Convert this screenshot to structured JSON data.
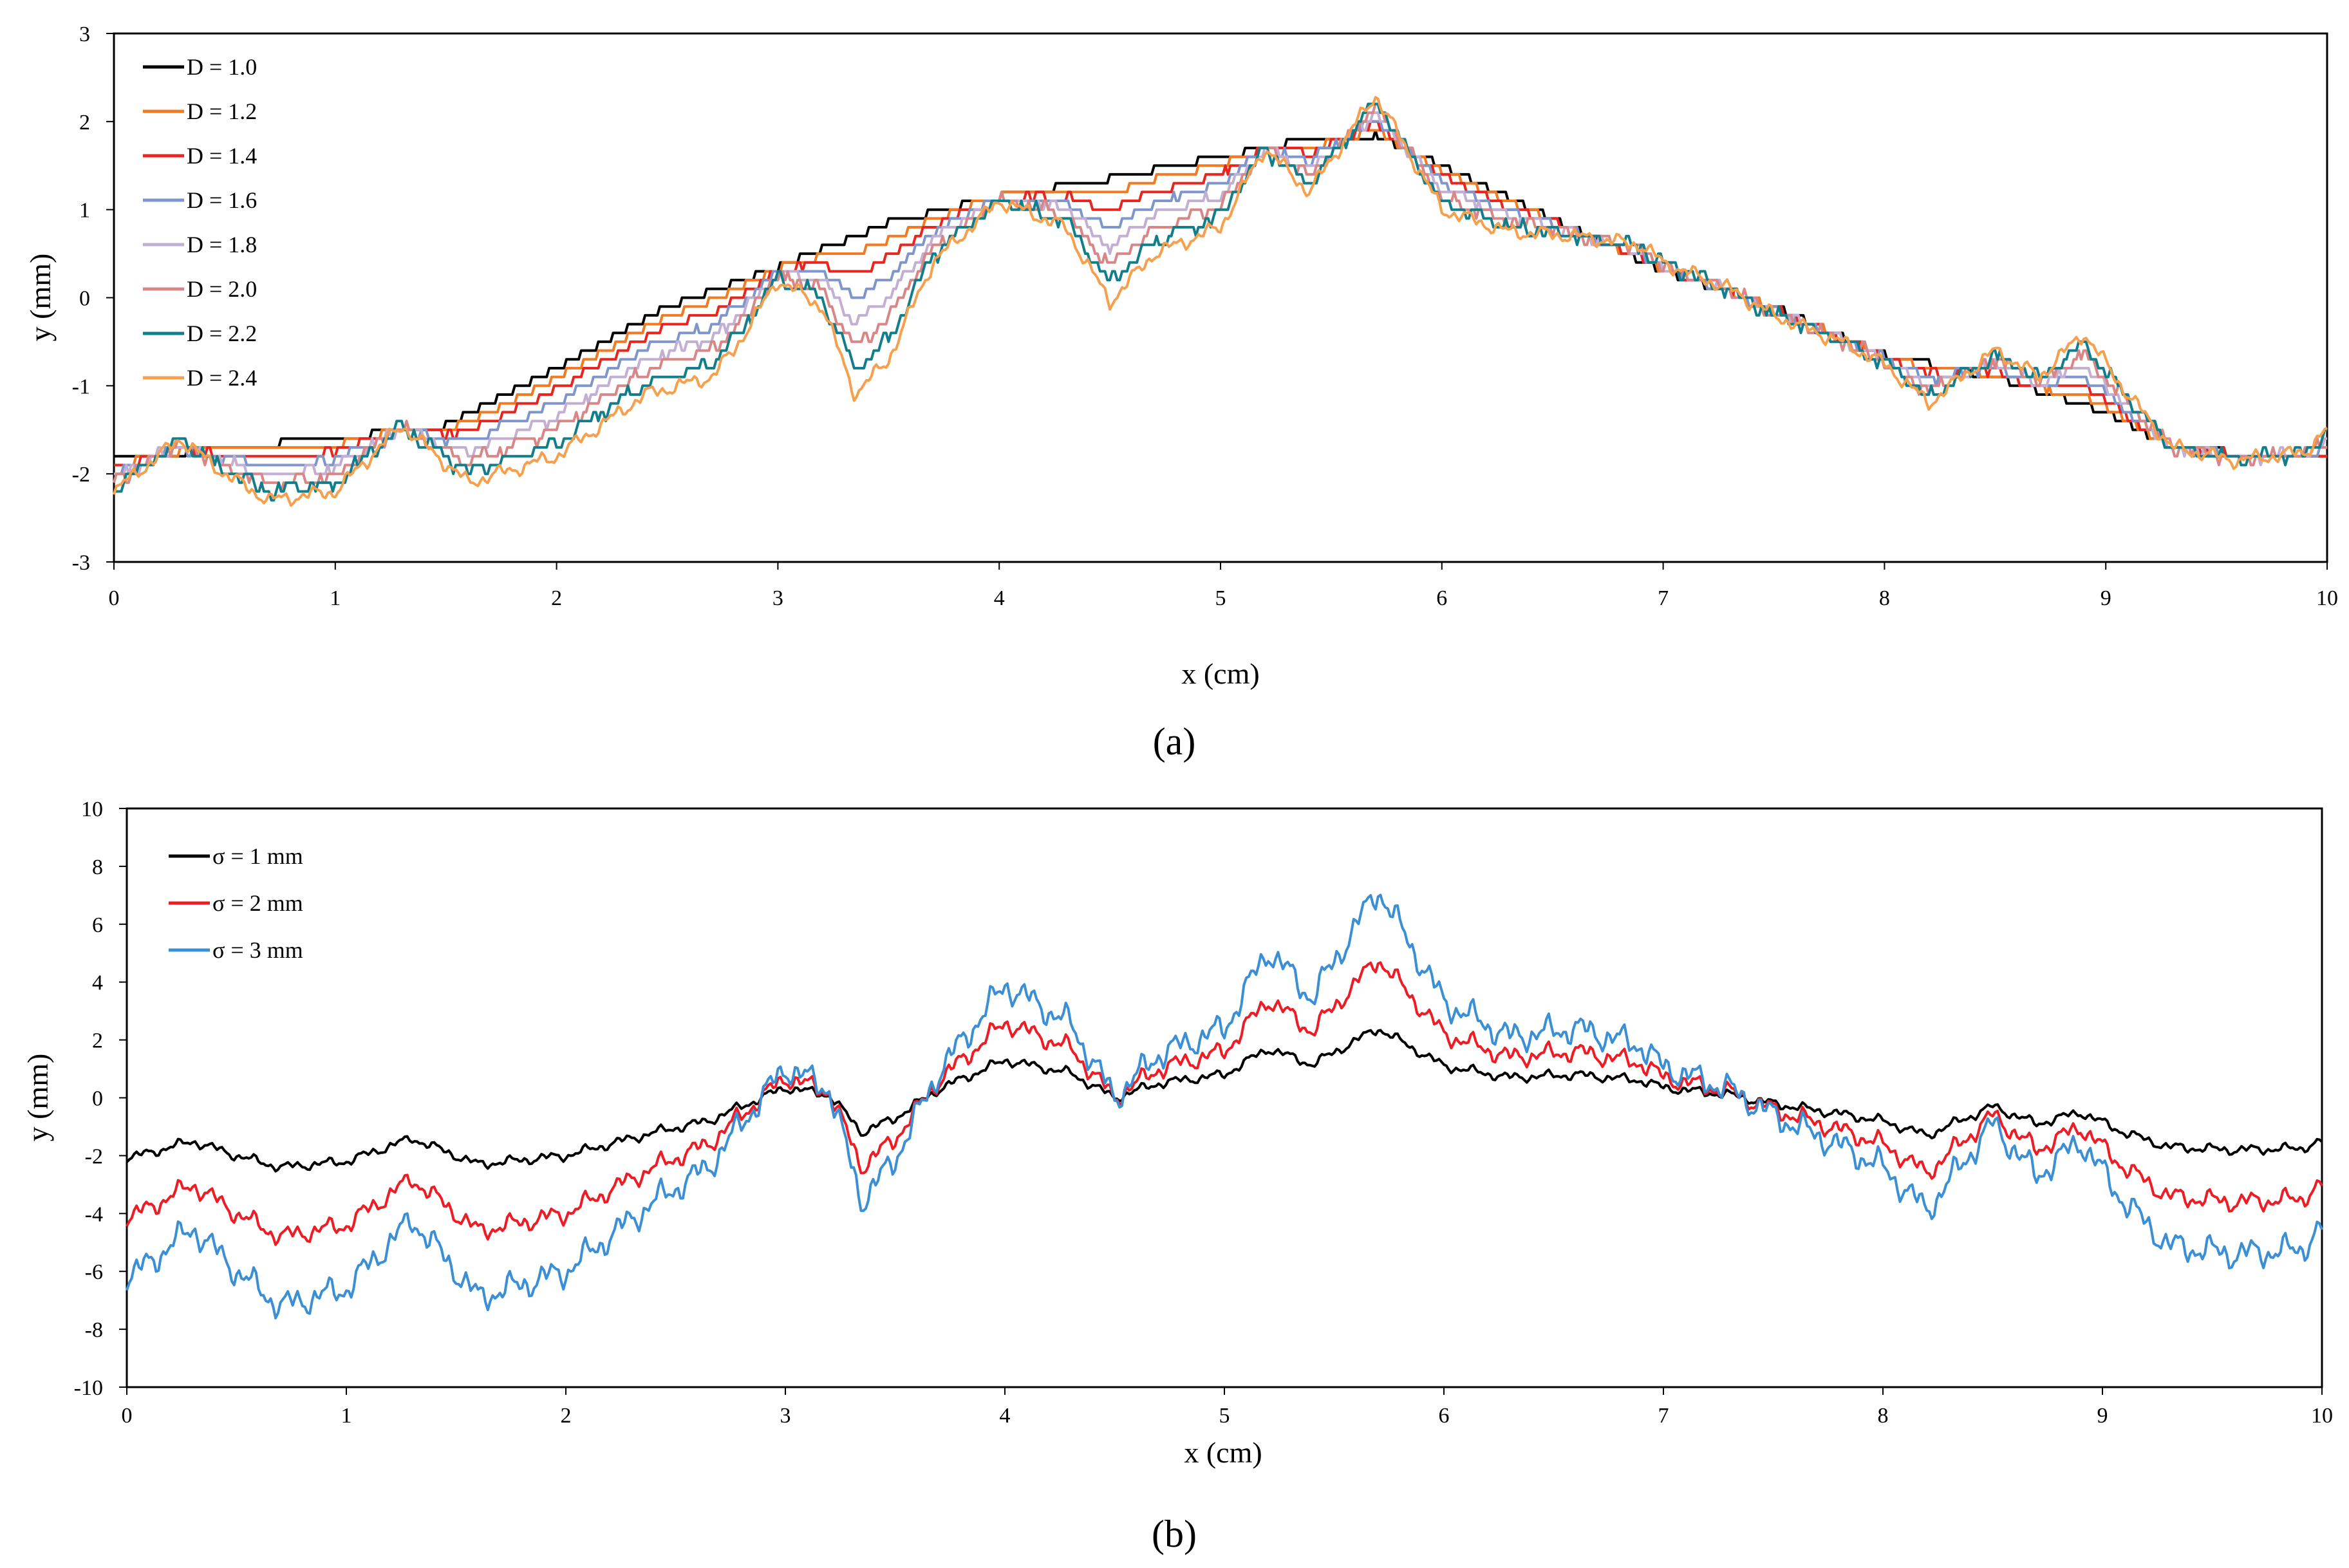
{
  "chart_data": [
    {
      "type": "line",
      "panel_label": "(a)",
      "xlabel": "x (cm)",
      "ylabel": "y (mm)",
      "xlim": [
        0,
        10
      ],
      "ylim": [
        -3,
        3
      ],
      "xticks": [
        "0",
        "1",
        "2",
        "3",
        "4",
        "5",
        "6",
        "7",
        "8",
        "9",
        "10"
      ],
      "yticks": [
        "-3",
        "-2",
        "-1",
        "0",
        "1",
        "2",
        "3"
      ],
      "grid": false,
      "legend_position": "top-left",
      "series": [
        {
          "name": "D = 1.0",
          "color": "#000000",
          "rough": 0.0
        },
        {
          "name": "D = 1.2",
          "color": "#f07b22",
          "rough": 0.12
        },
        {
          "name": "D = 1.4",
          "color": "#e8251f",
          "rough": 0.25
        },
        {
          "name": "D = 1.6",
          "color": "#7f96cc",
          "rough": 0.4
        },
        {
          "name": "D = 1.8",
          "color": "#c3aed4",
          "rough": 0.55
        },
        {
          "name": "D = 2.0",
          "color": "#d98686",
          "rough": 0.7
        },
        {
          "name": "D = 2.2",
          "color": "#127e8c",
          "rough": 0.85
        },
        {
          "name": "D = 2.4",
          "color": "#f6a04d",
          "rough": 1.0
        }
      ],
      "base_profile": {
        "x": [
          0,
          0.5,
          1.0,
          1.5,
          2.0,
          2.5,
          3.0,
          3.5,
          4.0,
          4.5,
          5.0,
          5.3,
          5.7,
          6.0,
          6.5,
          7.0,
          7.5,
          8.0,
          8.5,
          9.0,
          9.3,
          10.0
        ],
        "y": [
          -1.85,
          -1.7,
          -1.6,
          -1.45,
          -0.8,
          -0.1,
          0.35,
          0.85,
          1.15,
          1.35,
          1.6,
          1.75,
          1.85,
          1.5,
          0.9,
          0.3,
          -0.1,
          -0.65,
          -0.9,
          -1.3,
          -1.7,
          -1.85
        ]
      },
      "rough_profile": {
        "x": [
          0,
          0.3,
          0.5,
          0.7,
          1.0,
          1.3,
          1.6,
          2.0,
          2.4,
          2.7,
          2.8,
          3.0,
          3.2,
          3.35,
          3.5,
          3.7,
          4.0,
          4.3,
          4.5,
          4.7,
          5.0,
          5.2,
          5.4,
          5.7,
          6.0,
          6.3,
          6.6,
          6.9,
          7.0,
          7.3,
          7.5,
          7.8,
          8.0,
          8.2,
          8.5,
          8.7,
          8.9,
          9.1,
          9.3,
          9.6,
          9.9,
          10.0
        ],
        "y": [
          -2.2,
          -1.6,
          -2.0,
          -2.3,
          -2.2,
          -1.45,
          -2.1,
          -1.8,
          -1.1,
          -0.9,
          -0.6,
          0.2,
          -0.1,
          -1.1,
          -0.7,
          0.4,
          1.1,
          0.8,
          -0.05,
          0.5,
          0.8,
          1.7,
          1.2,
          2.3,
          1.0,
          0.75,
          0.7,
          0.6,
          0.4,
          0.1,
          -0.2,
          -0.5,
          -0.75,
          -1.2,
          -0.6,
          -0.9,
          -0.4,
          -1.1,
          -1.7,
          -1.85,
          -1.75,
          -1.5
        ]
      }
    },
    {
      "type": "line",
      "panel_label": "(b)",
      "xlabel": "x (cm)",
      "ylabel": "y (mm)",
      "xlim": [
        0,
        10
      ],
      "ylim": [
        -10,
        10
      ],
      "xticks": [
        "0",
        "1",
        "2",
        "3",
        "4",
        "5",
        "6",
        "7",
        "8",
        "9",
        "10"
      ],
      "yticks": [
        "-10",
        "-8",
        "-6",
        "-4",
        "-2",
        "0",
        "2",
        "4",
        "6",
        "8",
        "10"
      ],
      "grid": false,
      "legend_position": "top-left",
      "series": [
        {
          "name": "σ = 1 mm",
          "color": "#000000",
          "scale": 1
        },
        {
          "name": "σ = 2 mm",
          "color": "#ee1c25",
          "scale": 2
        },
        {
          "name": "σ = 3 mm",
          "color": "#3b8fd4",
          "scale": 3
        }
      ],
      "base_profile": {
        "x": [
          0,
          0.3,
          0.5,
          0.7,
          1.0,
          1.3,
          1.6,
          2.0,
          2.4,
          2.65,
          2.8,
          3.0,
          3.2,
          3.35,
          3.5,
          3.7,
          4.0,
          4.3,
          4.5,
          4.7,
          5.0,
          5.2,
          5.4,
          5.7,
          6.0,
          6.3,
          6.6,
          6.9,
          7.0,
          7.3,
          7.5,
          7.8,
          8.0,
          8.2,
          8.5,
          8.7,
          8.9,
          9.1,
          9.3,
          9.6,
          9.9,
          10.0
        ],
        "y": [
          -2.1,
          -1.5,
          -2.0,
          -2.4,
          -2.2,
          -1.4,
          -2.3,
          -2.0,
          -1.2,
          -0.8,
          -0.3,
          0.35,
          0.1,
          -1.2,
          -0.7,
          0.3,
          1.3,
          0.85,
          0.0,
          0.5,
          0.8,
          1.7,
          1.15,
          2.4,
          1.1,
          0.7,
          0.8,
          0.6,
          0.35,
          0.1,
          -0.2,
          -0.55,
          -0.8,
          -1.3,
          -0.3,
          -0.9,
          -0.5,
          -1.2,
          -1.7,
          -1.8,
          -1.75,
          -1.5
        ]
      }
    }
  ]
}
